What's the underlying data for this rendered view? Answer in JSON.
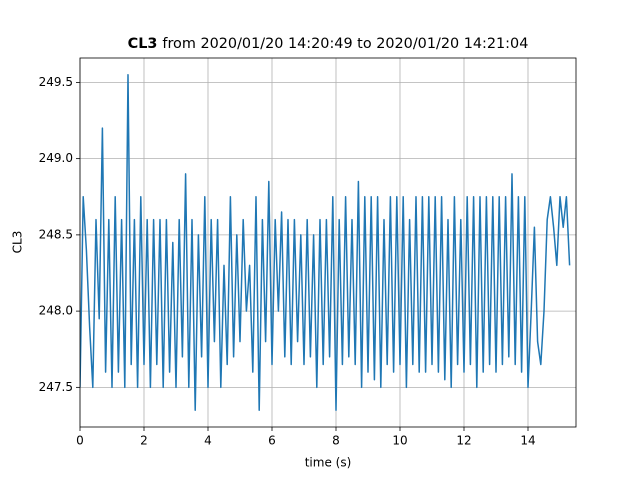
{
  "chart_data": {
    "type": "line",
    "title_bold": "CL3",
    "title": "from 2020/01/20 14:20:49 to 2020/01/20 14:21:04",
    "xlabel": "time (s)",
    "ylabel": "CL3",
    "color": "#1f77b4",
    "grid": true,
    "xlim": [
      0,
      15.5
    ],
    "xticks": [
      0,
      2,
      4,
      6,
      8,
      10,
      12,
      14
    ],
    "ylim": [
      247.24,
      249.66
    ],
    "yticks": [
      247.5,
      {
        "value": 248,
        "label": "248.0"
      },
      248.5,
      {
        "value": 249,
        "label": "249.0"
      },
      249.5
    ],
    "x": [
      0,
      0.1,
      0.2,
      0.3,
      0.4,
      0.5,
      0.6,
      0.7,
      0.8,
      0.9,
      1,
      1.1,
      1.2,
      1.3,
      1.4,
      1.5,
      1.6,
      1.7,
      1.8,
      1.9,
      2,
      2.1,
      2.2,
      2.3,
      2.4,
      2.5,
      2.6,
      2.7,
      2.8,
      2.9,
      3,
      3.1,
      3.2,
      3.3,
      3.4,
      3.5,
      3.6,
      3.7,
      3.8,
      3.9,
      4,
      4.1,
      4.2,
      4.3,
      4.4,
      4.5,
      4.6,
      4.7,
      4.8,
      4.9,
      5,
      5.1,
      5.2,
      5.3,
      5.4,
      5.5,
      5.6,
      5.7,
      5.8,
      5.9,
      6,
      6.1,
      6.2,
      6.3,
      6.4,
      6.5,
      6.6,
      6.7,
      6.8,
      6.9,
      7,
      7.1,
      7.2,
      7.3,
      7.4,
      7.5,
      7.6,
      7.7,
      7.8,
      7.9,
      8,
      8.1,
      8.2,
      8.3,
      8.4,
      8.5,
      8.6,
      8.7,
      8.8,
      8.9,
      9,
      9.1,
      9.2,
      9.3,
      9.4,
      9.5,
      9.6,
      9.7,
      9.8,
      9.9,
      10,
      10.1,
      10.2,
      10.3,
      10.4,
      10.5,
      10.6,
      10.7,
      10.8,
      10.9,
      11,
      11.1,
      11.2,
      11.3,
      11.4,
      11.5,
      11.6,
      11.7,
      11.8,
      11.9,
      12,
      12.1,
      12.2,
      12.3,
      12.4,
      12.5,
      12.6,
      12.7,
      12.8,
      12.9,
      13,
      13.1,
      13.2,
      13.3,
      13.4,
      13.5,
      13.6,
      13.7,
      13.8,
      13.9,
      14,
      14.1,
      14.2,
      14.3,
      14.4,
      14.5,
      14.6,
      14.7,
      14.8,
      14.9,
      15,
      15.1,
      15.2,
      15.3
    ],
    "values": [
      247.5,
      248.75,
      248.4,
      247.9,
      247.5,
      248.6,
      247.95,
      249.2,
      247.6,
      248.6,
      247.5,
      248.75,
      247.6,
      248.6,
      247.5,
      249.55,
      247.65,
      248.6,
      247.5,
      248.75,
      247.65,
      248.6,
      247.5,
      248.6,
      247.65,
      248.6,
      247.5,
      248.6,
      247.6,
      248.45,
      247.5,
      248.6,
      247.7,
      248.9,
      247.5,
      248.6,
      247.35,
      248.5,
      247.7,
      248.75,
      247.5,
      248.6,
      247.8,
      248.6,
      247.5,
      248.3,
      247.65,
      248.75,
      247.7,
      248.5,
      247.8,
      248.6,
      248.0,
      248.3,
      247.6,
      248.75,
      247.35,
      248.6,
      247.8,
      248.85,
      247.65,
      248.6,
      248.0,
      248.65,
      247.7,
      248.6,
      247.65,
      248.6,
      247.8,
      248.5,
      247.65,
      248.6,
      247.7,
      248.5,
      247.5,
      248.6,
      247.65,
      248.6,
      247.7,
      248.75,
      247.35,
      248.6,
      247.65,
      248.75,
      247.7,
      248.6,
      247.65,
      248.85,
      247.5,
      248.75,
      247.6,
      248.75,
      247.55,
      248.75,
      247.5,
      248.6,
      247.65,
      248.75,
      247.6,
      248.75,
      247.65,
      248.75,
      247.5,
      248.6,
      247.65,
      248.75,
      247.6,
      248.75,
      247.6,
      248.75,
      247.65,
      248.75,
      247.6,
      248.75,
      247.55,
      248.6,
      247.5,
      248.75,
      247.65,
      248.6,
      247.6,
      248.75,
      247.65,
      248.75,
      247.5,
      248.75,
      247.6,
      248.75,
      247.65,
      248.75,
      247.6,
      248.75,
      247.65,
      248.75,
      247.7,
      248.9,
      247.65,
      248.75,
      247.6,
      248.75,
      247.5,
      248.0,
      248.55,
      247.8,
      247.65,
      248.0,
      248.6,
      248.75,
      248.55,
      248.3,
      248.75,
      248.55,
      248.75,
      248.3
    ]
  }
}
